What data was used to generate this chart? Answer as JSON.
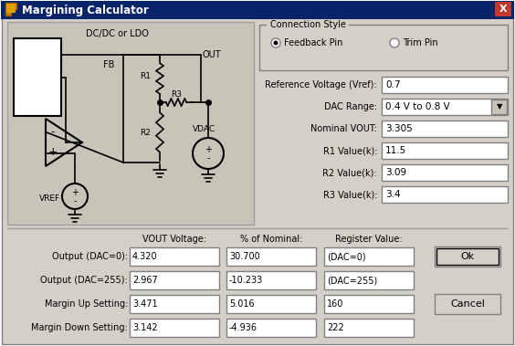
{
  "title": "Margining Calculator",
  "bg_color": "#d4d0c8",
  "title_bar_color": "#0a246a",
  "title_text_color": "#ffffff",
  "circuit_bg": "#c8c4b8",
  "circuit_border": "#808080",
  "input_box_color": "#ffffff",
  "input_box_border": "#808080",
  "connection_style_label": "Connection Style",
  "radio1": "Feedback Pin",
  "radio2": "Trim Pin",
  "fields": [
    {
      "label": "Reference Voltage (Vref):",
      "value": "0.7",
      "dropdown": false
    },
    {
      "label": "DAC Range:",
      "value": "0.4 V to 0.8 V",
      "dropdown": true
    },
    {
      "label": "Nominal VOUT:",
      "value": "3.305",
      "dropdown": false
    },
    {
      "label": "R1 Value(k):",
      "value": "11.5",
      "dropdown": false
    },
    {
      "label": "R2 Value(k):",
      "value": "3.09",
      "dropdown": false
    },
    {
      "label": "R3 Value(k):",
      "value": "3.4",
      "dropdown": false
    }
  ],
  "table_headers": [
    "",
    "VOUT Voltage:",
    "% of Nominal:",
    "Register Value:"
  ],
  "table_rows": [
    {
      "label": "Output (DAC=0):",
      "vout": "4.320",
      "pct": "30.700",
      "reg": "(DAC=0)"
    },
    {
      "label": "Output (DAC=255):",
      "vout": "2.967",
      "pct": "-10.233",
      "reg": "(DAC=255)"
    },
    {
      "label": "Margin Up Setting:",
      "vout": "3.471",
      "pct": "5.016",
      "reg": "160"
    },
    {
      "label": "Margin Down Setting:",
      "vout": "3.142",
      "pct": "-4.936",
      "reg": "222"
    }
  ],
  "btn_ok": "Ok",
  "btn_cancel": "Cancel",
  "dc_ldo_label": "DC/DC or LDO",
  "out_label": "OUT",
  "fb_label": "FB",
  "r1_label": "R1",
  "r2_label": "R2",
  "r3_label": "R3",
  "vdac_label": "VDAC",
  "vref_label": "VREF"
}
